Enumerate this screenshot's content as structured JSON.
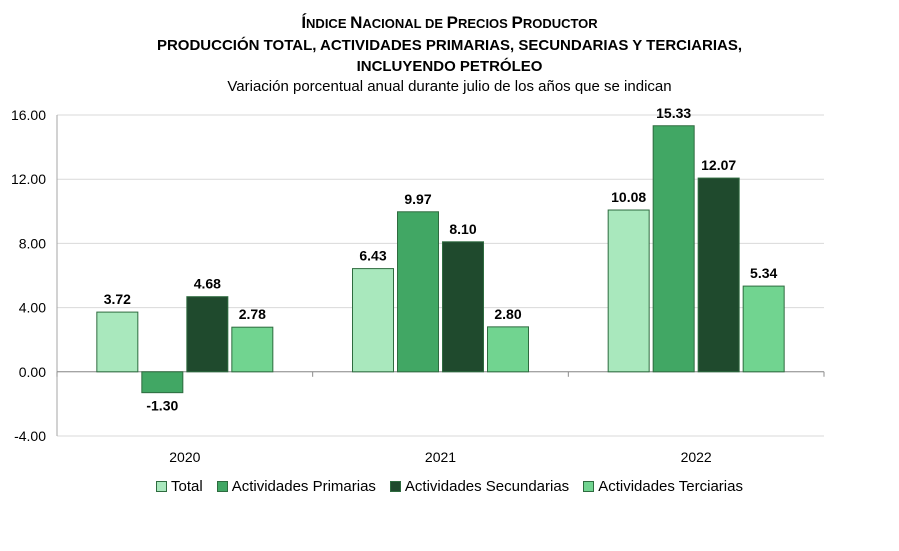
{
  "chart_data": {
    "type": "bar",
    "title_line1_first": "Í",
    "title_line1_rest_a": "NDICE ",
    "title_line1_N": "N",
    "title_line1_rest_b": "ACIONAL DE ",
    "title_line1_P": "P",
    "title_line1_rest_c": "RECIOS ",
    "title_line1_P2": "P",
    "title_line1_rest_d": "RODUCTOR",
    "title": "Índice Nacional de Precios Productor",
    "title_line2": "PRODUCCIÓN TOTAL, ACTIVIDADES PRIMARIAS, SECUNDARIAS Y TERCIARIAS,",
    "title_line3": "INCLUYENDO PETRÓLEO",
    "subtitle": "Variación porcentual anual durante julio de los años que se indican",
    "categories": [
      "2020",
      "2021",
      "2022"
    ],
    "series": [
      {
        "name": "Total",
        "values": [
          3.72,
          6.43,
          10.08
        ],
        "labels": [
          "3.72",
          "6.43",
          "10.08"
        ],
        "color": "#a9e8bd"
      },
      {
        "name": "Actividades Primarias",
        "values": [
          -1.3,
          9.97,
          15.33
        ],
        "labels": [
          "-1.30",
          "9.97",
          "15.33"
        ],
        "color": "#41a764"
      },
      {
        "name": "Actividades Secundarias",
        "values": [
          4.68,
          8.1,
          12.07
        ],
        "labels": [
          "4.68",
          "8.10",
          "12.07"
        ],
        "color": "#1f4a2d"
      },
      {
        "name": "Actividades Terciarias",
        "values": [
          2.78,
          2.8,
          5.34
        ],
        "labels": [
          "2.78",
          "2.80",
          "5.34"
        ],
        "color": "#71d490"
      }
    ],
    "yticks": [
      "-4.00",
      "0.00",
      "4.00",
      "8.00",
      "12.00",
      "16.00"
    ],
    "ylim": [
      -4,
      16
    ],
    "grid": true,
    "legend_position": "bottom"
  }
}
